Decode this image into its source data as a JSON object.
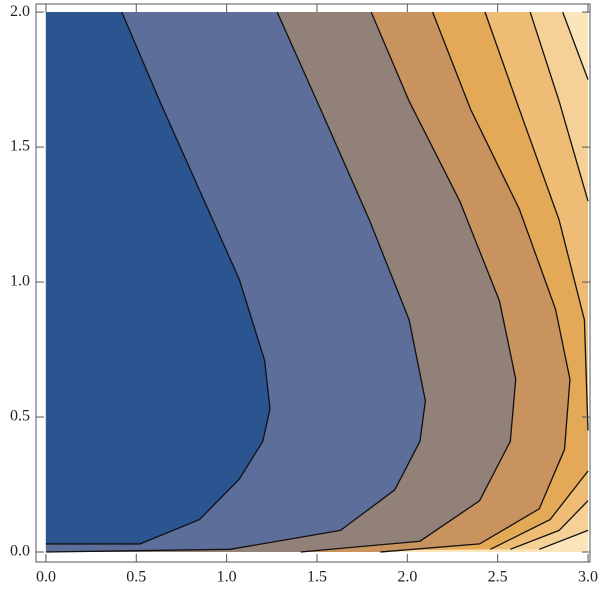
{
  "chart_data": {
    "type": "contour",
    "xlim": [
      -0.055,
      3.011
    ],
    "ylim": [
      -0.037,
      2.03
    ],
    "xticks": [
      {
        "value": 0,
        "label": "0.0"
      },
      0.5,
      {
        "value": 1,
        "label": "1.0"
      },
      1.5,
      {
        "value": 2,
        "label": "2.0"
      },
      2.5,
      {
        "value": 3,
        "label": "3.0"
      }
    ],
    "yticks": [
      {
        "value": 0,
        "label": "0.0"
      },
      0.5,
      {
        "value": 1,
        "label": "1.0"
      },
      1.5,
      {
        "value": 2,
        "label": "2.0"
      }
    ],
    "background": "#fbe6bc",
    "series": [
      {
        "color": "#2b5590",
        "x": [
          0.42,
          0.63,
          0.85,
          1.07,
          1.21,
          1.24,
          1.2,
          1.07,
          0.85,
          0.52,
          0
        ],
        "y": [
          2,
          1.67,
          1.34,
          1.01,
          0.71,
          0.53,
          0.41,
          0.27,
          0.12,
          0.03,
          0.03
        ]
      },
      {
        "color": "#5e6e9b",
        "x": [
          1.28,
          1.52,
          1.79,
          2.01,
          2.1,
          2.07,
          1.93,
          1.63,
          1.02,
          0
        ],
        "y": [
          2,
          1.64,
          1.23,
          0.86,
          0.56,
          0.41,
          0.23,
          0.08,
          0.01,
          0
        ]
      },
      {
        "color": "#928179",
        "x": [
          1.8,
          2.01,
          2.29,
          2.51,
          2.6,
          2.57,
          2.4,
          2.07,
          1.41
        ],
        "y": [
          2,
          1.67,
          1.3,
          0.93,
          0.64,
          0.41,
          0.19,
          0.04,
          0
        ]
      },
      {
        "color": "#c9935f",
        "x": [
          2.14,
          2.35,
          2.62,
          2.82,
          2.9,
          2.87,
          2.73,
          2.4,
          1.85
        ],
        "y": [
          2,
          1.64,
          1.27,
          0.9,
          0.64,
          0.38,
          0.16,
          0.03,
          0
        ]
      },
      {
        "color": "#e3a956",
        "x": [
          2.43,
          2.62,
          2.84,
          2.98,
          3,
          null,
          3,
          2.79,
          2.46
        ],
        "y": [
          2,
          1.64,
          1.23,
          0.86,
          0.45,
          null,
          0.3,
          0.12,
          0.01
        ]
      },
      {
        "color": "#efbc76",
        "x": [
          2.68,
          2.84,
          3,
          null,
          3,
          2.84,
          2.57
        ],
        "y": [
          2,
          1.67,
          1.3,
          null,
          0.19,
          0.08,
          0.01
        ]
      },
      {
        "color": "#f6d197",
        "x": [
          2.86,
          3,
          null,
          3,
          2.73
        ],
        "y": [
          2,
          1.75,
          null,
          0.08,
          0.01
        ]
      }
    ]
  }
}
